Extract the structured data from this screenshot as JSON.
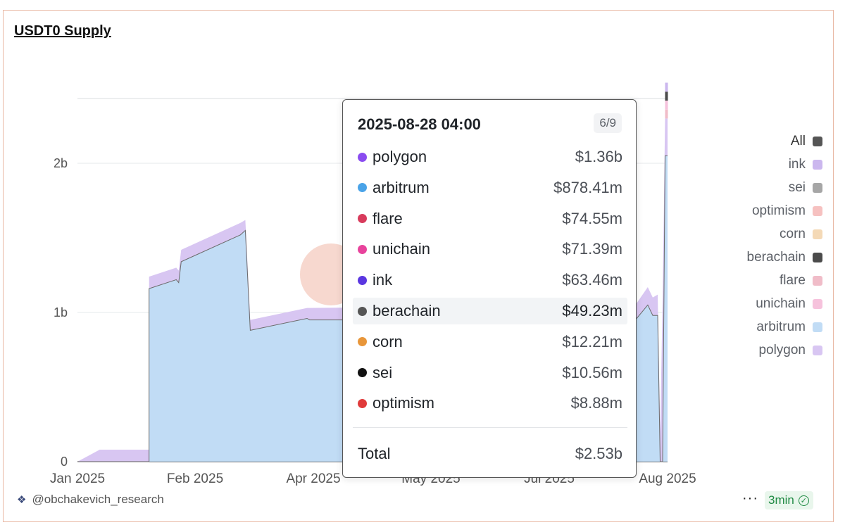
{
  "title": "USDT0 Supply",
  "footer": {
    "author": "@obchakevich_research",
    "more": "···",
    "refresh": "3min"
  },
  "legend": [
    {
      "name": "All",
      "color": "#555555"
    },
    {
      "name": "ink",
      "color": "#cbb7ee"
    },
    {
      "name": "sei",
      "color": "#a6a6a6"
    },
    {
      "name": "optimism",
      "color": "#f6c1c0"
    },
    {
      "name": "corn",
      "color": "#f4d9b6"
    },
    {
      "name": "berachain",
      "color": "#4b4b4b"
    },
    {
      "name": "flare",
      "color": "#f0bcc8"
    },
    {
      "name": "unichain",
      "color": "#f6c2dc"
    },
    {
      "name": "arbitrum",
      "color": "#c1dcf5"
    },
    {
      "name": "polygon",
      "color": "#d8c6f2"
    }
  ],
  "tooltip": {
    "datetime": "2025-08-28 04:00",
    "page": "6/9",
    "rows": [
      {
        "name": "polygon",
        "value": "$1.36b",
        "color": "#8a4cf0"
      },
      {
        "name": "arbitrum",
        "value": "$878.41m",
        "color": "#4aa3e8"
      },
      {
        "name": "flare",
        "value": "$74.55m",
        "color": "#d83b5c"
      },
      {
        "name": "unichain",
        "value": "$71.39m",
        "color": "#e8439c"
      },
      {
        "name": "ink",
        "value": "$63.46m",
        "color": "#5a36e0"
      },
      {
        "name": "berachain",
        "value": "$49.23m",
        "color": "#555555"
      },
      {
        "name": "corn",
        "value": "$12.21m",
        "color": "#e8963a"
      },
      {
        "name": "sei",
        "value": "$10.56m",
        "color": "#111111"
      },
      {
        "name": "optimism",
        "value": "$8.88m",
        "color": "#e03a3a"
      }
    ],
    "total_label": "Total",
    "total_value": "$2.53b"
  },
  "chart_data": {
    "type": "area",
    "stacked": true,
    "title": "USDT0 Supply",
    "x_ticks": [
      "Jan 2025",
      "Feb 2025",
      "Apr 2025",
      "May 2025",
      "Jul 2025",
      "Aug 2025"
    ],
    "y_ticks": [
      "0",
      "1b",
      "2b"
    ],
    "ylim": [
      0,
      2.6
    ],
    "xlim": [
      "2025-01-01",
      "2025-08-28"
    ],
    "grid": true,
    "legend_position": "right",
    "series": [
      {
        "name": "arbitrum",
        "color": "#c1dcf5",
        "x": [
          "2025-01-01",
          "2025-01-10",
          "2025-01-30",
          "2025-02-10",
          "2025-02-12",
          "2025-03-10",
          "2025-03-12",
          "2025-04-05",
          "2025-08-15",
          "2025-08-22",
          "2025-08-25",
          "2025-08-28"
        ],
        "y": [
          0,
          0,
          1.16,
          1.22,
          1.35,
          1.55,
          0.88,
          0.95,
          0.95,
          1.05,
          0,
          0.88
        ]
      },
      {
        "name": "polygon",
        "color": "#d8c6f2",
        "x": [
          "2025-01-01",
          "2025-01-10",
          "2025-01-30",
          "2025-02-10",
          "2025-02-12",
          "2025-03-10",
          "2025-03-12",
          "2025-04-05",
          "2025-08-15",
          "2025-08-22",
          "2025-08-25",
          "2025-08-28"
        ],
        "y": [
          0,
          0.08,
          0.08,
          0.08,
          0.08,
          0.08,
          0.07,
          0.08,
          0.12,
          0.12,
          0.14,
          1.36
        ]
      },
      {
        "name": "flare",
        "color": "#f0bcc8",
        "x": [
          "2025-08-15",
          "2025-08-22",
          "2025-08-28"
        ],
        "y": [
          0,
          0.08,
          0.07
        ]
      },
      {
        "name": "unichain",
        "color": "#f6c2dc",
        "x": [
          "2025-08-15",
          "2025-08-22",
          "2025-08-28"
        ],
        "y": [
          0,
          0.07,
          0.07
        ]
      },
      {
        "name": "berachain",
        "color": "#4b4b4b",
        "x": [
          "2025-08-15",
          "2025-08-22",
          "2025-08-28"
        ],
        "y": [
          0,
          0.04,
          0.05
        ]
      },
      {
        "name": "ink",
        "color": "#cbb7ee",
        "x": [
          "2025-08-15",
          "2025-08-22",
          "2025-08-28"
        ],
        "y": [
          0,
          0.06,
          0.06
        ]
      }
    ],
    "tooltip_values": {
      "x": "2025-08-28 04:00",
      "polygon": 1.36,
      "arbitrum": 0.87841,
      "flare": 0.07455,
      "unichain": 0.07139,
      "ink": 0.06346,
      "berachain": 0.04923,
      "corn": 0.01221,
      "sei": 0.01056,
      "optimism": 0.00888,
      "total": 2.53
    }
  }
}
